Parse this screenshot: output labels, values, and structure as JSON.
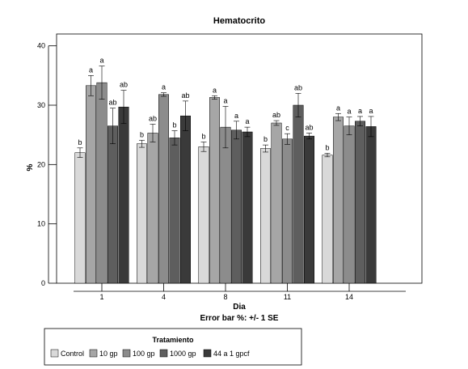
{
  "chart_data": {
    "type": "bar",
    "title": "Hematocrito",
    "xlabel": "Dia",
    "ylabel": "%",
    "subtitle": "Error bar %: +/- 1 SE",
    "ylim": [
      0,
      42
    ],
    "yticks": [
      0,
      10,
      20,
      30,
      40
    ],
    "grid": false,
    "categories": [
      "1",
      "4",
      "8",
      "11",
      "14"
    ],
    "series": [
      {
        "name": "Control",
        "color": "#d9d9d9",
        "values": [
          22.0,
          23.5,
          23.0,
          22.7,
          21.6
        ],
        "errors": [
          0.8,
          0.6,
          0.8,
          0.6,
          0.3
        ],
        "labels": [
          "b",
          "b",
          "b",
          "b",
          "b"
        ]
      },
      {
        "name": "10 gp",
        "color": "#a6a6a6",
        "values": [
          33.3,
          25.3,
          31.3,
          27.0,
          28.0
        ],
        "errors": [
          1.7,
          1.5,
          0.3,
          0.4,
          0.6
        ],
        "labels": [
          "a",
          "ab",
          "a",
          "ab",
          "a"
        ]
      },
      {
        "name": "100 gp",
        "color": "#8c8c8c",
        "values": [
          33.8,
          31.8,
          26.3,
          24.3,
          26.5
        ],
        "errors": [
          2.8,
          0.3,
          3.5,
          0.9,
          1.5
        ],
        "labels": [
          "a",
          "a",
          "a",
          "c",
          "a"
        ]
      },
      {
        "name": "1000 gp",
        "color": "#5e5e5e",
        "values": [
          26.5,
          24.5,
          25.8,
          30.0,
          27.3
        ],
        "errors": [
          3.0,
          1.2,
          1.5,
          2.0,
          0.8
        ],
        "labels": [
          "ab",
          "b",
          "a",
          "ab",
          "a"
        ]
      },
      {
        "name": "44 a 1 gpcf",
        "color": "#3a3a3a",
        "values": [
          29.7,
          28.2,
          25.5,
          24.8,
          26.4
        ],
        "errors": [
          2.8,
          2.5,
          0.8,
          0.5,
          1.7
        ],
        "labels": [
          "ab",
          "ab",
          "a",
          "ab",
          "a"
        ]
      }
    ],
    "legend": {
      "title": "Tratamiento",
      "position": "bottom-left"
    }
  }
}
